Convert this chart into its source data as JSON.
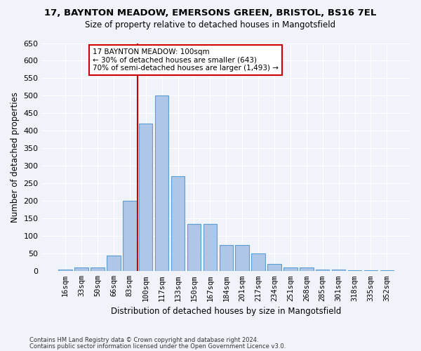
{
  "title1": "17, BAYNTON MEADOW, EMERSONS GREEN, BRISTOL, BS16 7EL",
  "title2": "Size of property relative to detached houses in Mangotsfield",
  "xlabel": "Distribution of detached houses by size in Mangotsfield",
  "ylabel": "Number of detached properties",
  "footnote1": "Contains HM Land Registry data © Crown copyright and database right 2024.",
  "footnote2": "Contains public sector information licensed under the Open Government Licence v3.0.",
  "bin_labels": [
    "16sqm",
    "33sqm",
    "50sqm",
    "66sqm",
    "83sqm",
    "100sqm",
    "117sqm",
    "133sqm",
    "150sqm",
    "167sqm",
    "184sqm",
    "201sqm",
    "217sqm",
    "234sqm",
    "251sqm",
    "268sqm",
    "285sqm",
    "301sqm",
    "318sqm",
    "335sqm",
    "352sqm"
  ],
  "bar_values": [
    5,
    10,
    10,
    45,
    200,
    420,
    500,
    270,
    135,
    135,
    75,
    75,
    50,
    20,
    10,
    10,
    5,
    5,
    2,
    2,
    2
  ],
  "bar_color": "#aec6e8",
  "bar_edge_color": "#5a9fd4",
  "highlight_index": 5,
  "highlight_color": "#cc0000",
  "ylim": [
    0,
    650
  ],
  "yticks": [
    0,
    50,
    100,
    150,
    200,
    250,
    300,
    350,
    400,
    450,
    500,
    550,
    600,
    650
  ],
  "annotation_text": "17 BAYNTON MEADOW: 100sqm\n← 30% of detached houses are smaller (643)\n70% of semi-detached houses are larger (1,493) →",
  "annotation_box_color": "#cc0000",
  "bg_color": "#f0f4fa",
  "plot_bg": "#f0f4fa",
  "title1_fontsize": 9.5,
  "title2_fontsize": 8.5
}
